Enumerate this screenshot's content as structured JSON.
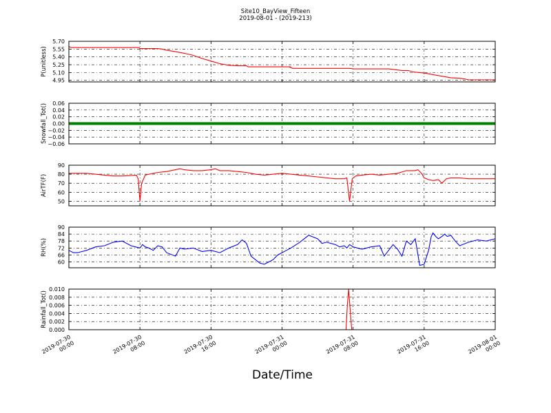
{
  "figure": {
    "title": "Site10_BayView_Fifteen",
    "subtitle": "2019-08-01 - (2019-213)",
    "xlabel": "Date/Time",
    "x_tick_labels": [
      [
        "2019-07-30",
        "00:00"
      ],
      [
        "2019-07-30",
        "08:00"
      ],
      [
        "2019-07-30",
        "16:00"
      ],
      [
        "2019-07-31",
        "00:00"
      ],
      [
        "2019-07-31",
        "08:00"
      ],
      [
        "2019-07-31",
        "16:00"
      ],
      [
        "2019-08-01",
        "00:00"
      ]
    ]
  },
  "chart_data": [
    {
      "type": "line",
      "ylabel": "P(unitless)",
      "color": "#ff0000",
      "ylim": [
        4.92,
        5.7
      ],
      "yticks": [
        4.95,
        5.1,
        5.25,
        5.4,
        5.55,
        5.7
      ],
      "ytick_labels": [
        "4.95",
        "5.10",
        "5.25",
        "5.40",
        "5.55",
        "5.70"
      ],
      "grid": true,
      "xlim": [
        0,
        48
      ],
      "series": [
        {
          "x": [
            0,
            0.3,
            2,
            4,
            6,
            7.9,
            8.0,
            9,
            10,
            10.5,
            11,
            12,
            13,
            14,
            15,
            16,
            17,
            18,
            19,
            20,
            20.2,
            21,
            23,
            25,
            24.8,
            25.2,
            26,
            28,
            31,
            31.6,
            32,
            34,
            36,
            37.5,
            38.2,
            38.8,
            40,
            41,
            42,
            43,
            44,
            44.5,
            45,
            46,
            47,
            48
          ],
          "y": [
            5.6,
            5.58,
            5.58,
            5.58,
            5.58,
            5.58,
            5.56,
            5.56,
            5.56,
            5.55,
            5.53,
            5.5,
            5.47,
            5.43,
            5.37,
            5.32,
            5.27,
            5.24,
            5.23,
            5.23,
            5.21,
            5.21,
            5.21,
            5.21,
            5.21,
            5.18,
            5.18,
            5.18,
            5.18,
            5.18,
            5.17,
            5.17,
            5.17,
            5.14,
            5.14,
            5.11,
            5.09,
            5.06,
            5.03,
            5.0,
            4.99,
            4.98,
            4.96,
            4.96,
            4.96,
            4.96
          ]
        }
      ]
    },
    {
      "type": "line",
      "ylabel": "Snowfall_Tot()",
      "color": "#008000",
      "ylim": [
        -0.06,
        0.06
      ],
      "yticks": [
        -0.06,
        -0.04,
        -0.02,
        0.0,
        0.02,
        0.04,
        0.06
      ],
      "ytick_labels": [
        "−0.06",
        "−0.04",
        "−0.02",
        "0.00",
        "0.02",
        "0.04",
        "0.06"
      ],
      "grid": true,
      "xlim": [
        0,
        48
      ],
      "series": [
        {
          "x": [
            0,
            48
          ],
          "y": [
            0,
            0
          ]
        }
      ]
    },
    {
      "type": "line",
      "ylabel": "AirTF(F)",
      "color": "#ff0000",
      "ylim": [
        45,
        90
      ],
      "yticks": [
        50,
        60,
        70,
        80,
        90
      ],
      "ytick_labels": [
        "50",
        "60",
        "70",
        "80",
        "90"
      ],
      "grid": true,
      "xlim": [
        0,
        48
      ],
      "series": [
        {
          "x": [
            0,
            1,
            2,
            3,
            4,
            5,
            6,
            7,
            7.6,
            7.8,
            8.0,
            8.2,
            8.6,
            9,
            10,
            11,
            12,
            12.5,
            13,
            14,
            15,
            16,
            16.5,
            17,
            18,
            19,
            20,
            21,
            22,
            23,
            24,
            25,
            26,
            27,
            28,
            29,
            30,
            31,
            31.3,
            31.6,
            31.9,
            32.3,
            33,
            34,
            35,
            36,
            37,
            38,
            39,
            39.3,
            39.7,
            40,
            40.5,
            41,
            41.6,
            42,
            42.5,
            43,
            44,
            45,
            46,
            47,
            48
          ],
          "y": [
            81,
            81,
            81,
            80,
            79,
            78,
            78,
            78.5,
            79,
            75,
            50,
            70,
            79,
            80,
            82,
            83,
            85,
            86,
            85,
            84,
            84,
            85,
            86,
            84,
            84,
            83,
            82,
            80,
            79,
            80,
            81,
            80,
            79,
            78,
            77,
            76,
            75,
            75,
            76,
            50,
            75,
            78,
            79,
            80,
            79,
            80,
            81,
            84,
            84,
            85,
            81,
            76,
            74,
            73,
            74,
            70,
            75,
            76,
            76,
            75,
            75,
            75,
            75
          ]
        }
      ]
    },
    {
      "type": "line",
      "ylabel": "RH(%)",
      "color": "#0000ff",
      "ylim": [
        55,
        90
      ],
      "yticks": [
        60,
        66,
        72,
        78,
        84,
        90
      ],
      "ytick_labels": [
        "60",
        "66",
        "72",
        "78",
        "84",
        "90"
      ],
      "grid": true,
      "xlim": [
        0,
        48
      ],
      "series": [
        {
          "x": [
            0,
            0.5,
            1,
            1.5,
            2,
            3,
            4,
            5,
            6,
            7,
            7.5,
            8,
            8.3,
            8.6,
            9,
            9.5,
            10,
            10.5,
            11,
            12,
            12.5,
            13,
            14,
            15,
            16,
            17,
            18,
            19,
            19.5,
            20,
            20.5,
            21,
            21.5,
            22,
            22.5,
            23,
            23.5,
            24,
            24.5,
            25,
            26,
            27,
            28,
            28.5,
            29,
            30,
            30.5,
            31,
            31.3,
            31.6,
            32,
            33,
            34,
            35,
            35.5,
            36,
            36.5,
            37,
            37.5,
            38,
            38.5,
            39,
            39.5,
            40,
            40.5,
            40.8,
            41,
            41.3,
            41.6,
            42,
            42.3,
            42.6,
            43,
            43.5,
            44,
            45,
            46,
            47,
            48
          ],
          "y": [
            70,
            68,
            68,
            69,
            70,
            73,
            74,
            77,
            78,
            74,
            73,
            72,
            75,
            73,
            72,
            70,
            74,
            73,
            68,
            65,
            72,
            71,
            72,
            69,
            70,
            68,
            72,
            75,
            79,
            76,
            65,
            62,
            59,
            58,
            60,
            62,
            66,
            68,
            70,
            72,
            77,
            83,
            80,
            76,
            77,
            75,
            73,
            74,
            72,
            75,
            73,
            71,
            73,
            74,
            65,
            70,
            75,
            71,
            65,
            78,
            75,
            80,
            57,
            58,
            70,
            82,
            85,
            82,
            80,
            82,
            84,
            82,
            83,
            78,
            74,
            77,
            79,
            78,
            80
          ]
        }
      ]
    },
    {
      "type": "line",
      "ylabel": "Rainfall_Tot()",
      "color": "#ff0000",
      "ylim": [
        0,
        0.01
      ],
      "yticks": [
        0.0,
        0.002,
        0.004,
        0.006,
        0.008,
        0.01
      ],
      "ytick_labels": [
        "0.000",
        "0.002",
        "0.004",
        "0.006",
        "0.008",
        "0.010"
      ],
      "grid": true,
      "xlim": [
        0,
        48
      ],
      "series": [
        {
          "x": [
            0,
            31.2,
            31.35,
            31.5,
            31.7,
            31.85,
            48
          ],
          "y": [
            0,
            0,
            0.006,
            0.01,
            0.004,
            0,
            0
          ]
        }
      ]
    }
  ]
}
